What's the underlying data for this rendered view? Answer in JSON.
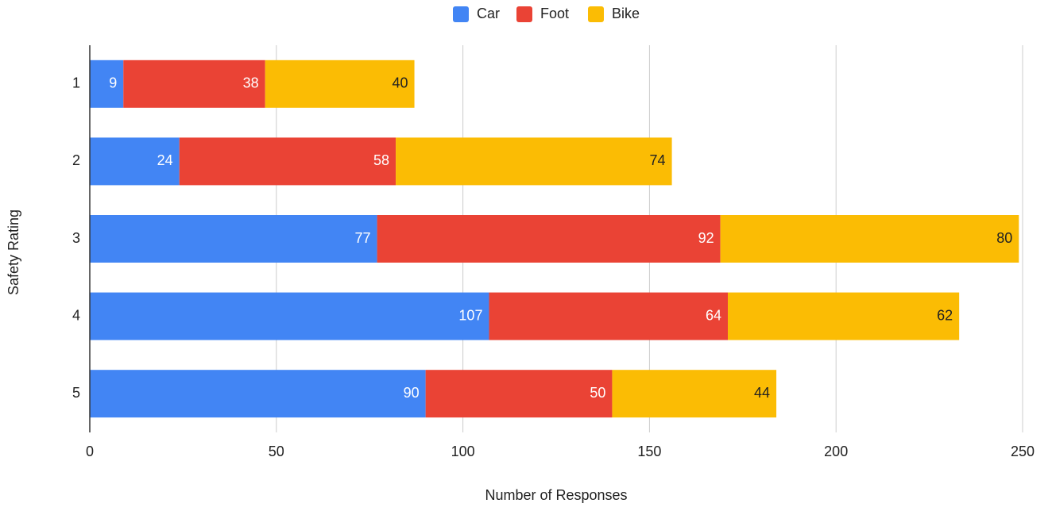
{
  "chart_data": {
    "type": "stacked-bar-horizontal",
    "legend": "top",
    "xlabel": "Number of Responses",
    "ylabel": "Safety Rating",
    "categories": [
      "1",
      "2",
      "3",
      "4",
      "5"
    ],
    "series": [
      {
        "name": "Car",
        "color": "#4285f4",
        "values": [
          9,
          24,
          77,
          107,
          90
        ]
      },
      {
        "name": "Foot",
        "color": "#ea4335",
        "values": [
          38,
          58,
          92,
          64,
          50
        ]
      },
      {
        "name": "Bike",
        "color": "#fbbc04",
        "values": [
          40,
          74,
          80,
          62,
          44
        ]
      }
    ],
    "xlim": [
      0,
      250
    ],
    "xticks": [
      0,
      50,
      100,
      150,
      200,
      250
    ],
    "grid": true
  }
}
